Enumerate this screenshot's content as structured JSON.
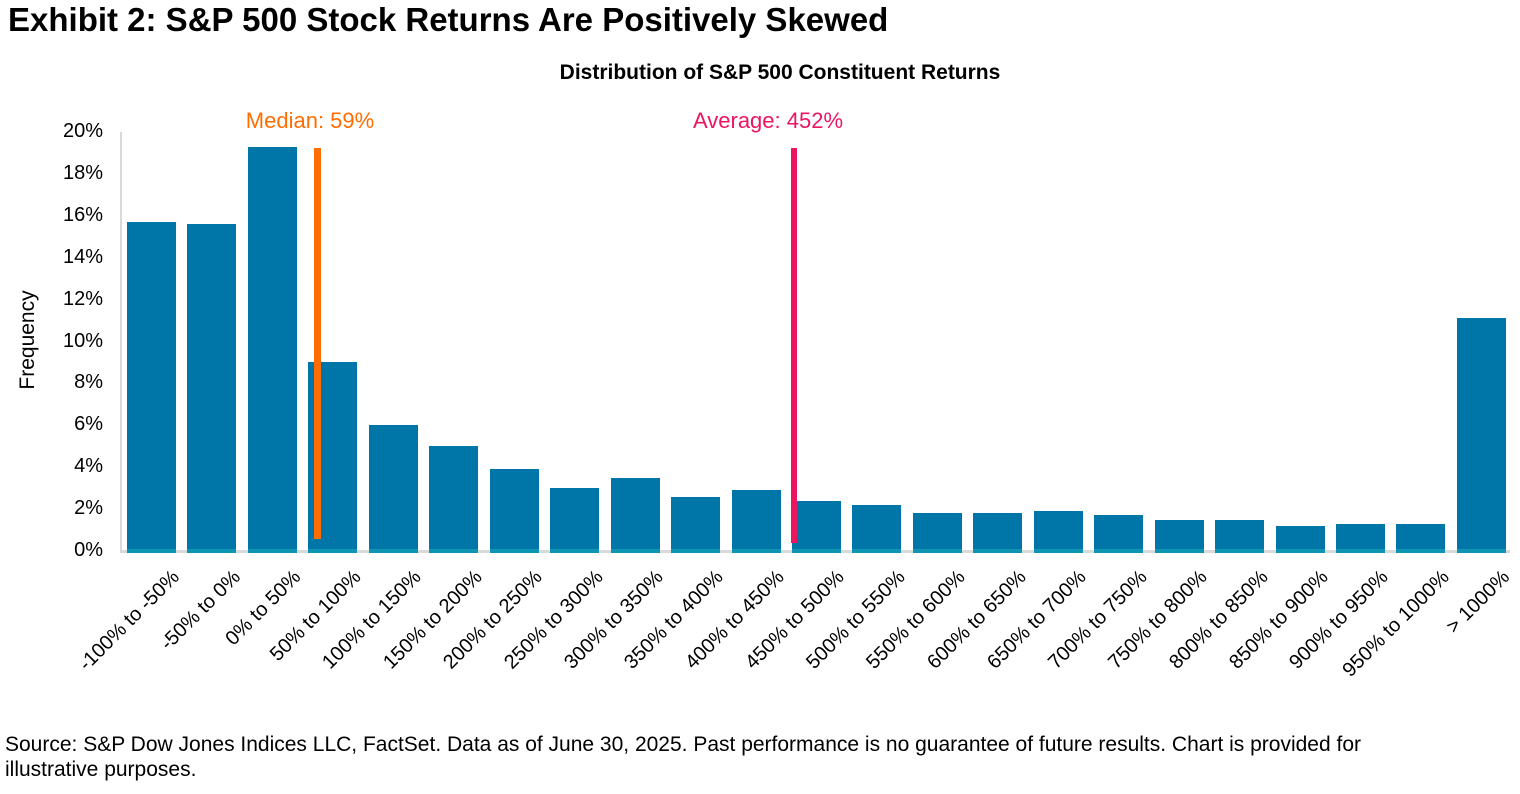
{
  "page": {
    "exhibit_title": "Exhibit 2: S&P 500 Stock Returns Are Positively Skewed",
    "source_note": "Source: S&P Dow Jones Indices LLC, FactSet. Data as of June 30, 2025. Past performance is no guarantee of future results. Chart is provided for illustrative purposes."
  },
  "chart_data": {
    "type": "bar",
    "title": "Distribution of S&P 500 Constituent Returns",
    "xlabel": "",
    "ylabel": "Frequency",
    "ylim": [
      0,
      20
    ],
    "ytick_labels": [
      "0%",
      "2%",
      "4%",
      "6%",
      "8%",
      "10%",
      "12%",
      "14%",
      "16%",
      "18%",
      "20%"
    ],
    "grid": false,
    "legend": "none",
    "categories": [
      "-100% to -50%",
      "-50% to 0%",
      "0% to 50%",
      "50% to 100%",
      "100% to 150%",
      "150% to 200%",
      "200% to 250%",
      "250% to 300%",
      "300% to 350%",
      "350% to 400%",
      "400% to 450%",
      "450% to 500%",
      "500% to 550%",
      "550% to 600%",
      "600% to 650%",
      "650% to 700%",
      "700% to 750%",
      "750% to 800%",
      "800% to 850%",
      "850% to 900%",
      "900% to 950%",
      "950% to 1000%",
      "> 1000%"
    ],
    "values": [
      15.7,
      15.6,
      19.3,
      9.0,
      6.0,
      5.0,
      3.9,
      3.0,
      3.5,
      2.6,
      2.9,
      2.4,
      2.2,
      1.8,
      1.8,
      1.9,
      1.7,
      1.5,
      1.5,
      1.2,
      1.3,
      1.3,
      11.1
    ],
    "bin_start_pct": -100,
    "bin_width_pct": 50,
    "annotations": [
      {
        "name": "median",
        "label": "Median: 59%",
        "value_pct": 59,
        "color": "#FF6D00"
      },
      {
        "name": "average",
        "label": "Average: 452%",
        "value_pct": 452,
        "color": "#EC1562"
      }
    ],
    "colors": {
      "bar": "#0076A8",
      "bar_base_strip": "#0D95B2",
      "axis_line": "#D9D9D9",
      "median": "#FF6D00",
      "average": "#EC1562",
      "title_text": "#000000"
    }
  }
}
